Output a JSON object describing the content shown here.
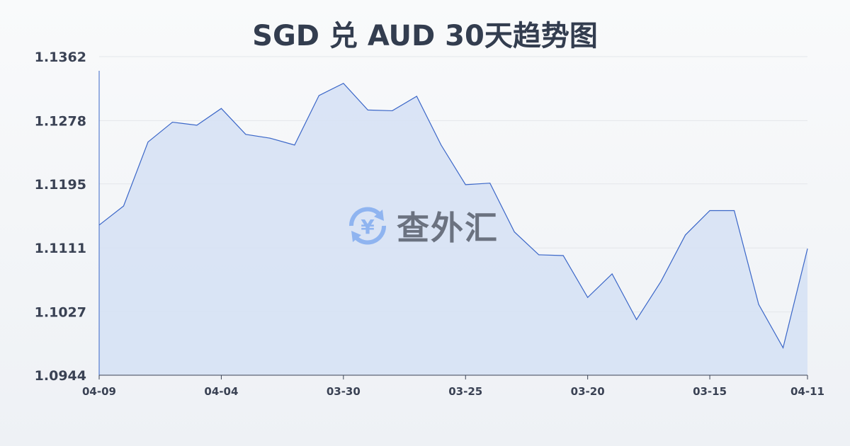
{
  "chart_data": {
    "type": "area",
    "title": "SGD 兑 AUD 30天趋势图",
    "xlabel": "",
    "ylabel": "",
    "ylim": [
      1.0944,
      1.1362
    ],
    "y_ticks": [
      "1.1362",
      "1.1278",
      "1.1195",
      "1.1111",
      "1.1027",
      "1.0944"
    ],
    "x_ticks": [
      {
        "index": 0,
        "label": "04-09"
      },
      {
        "index": 5,
        "label": "04-04"
      },
      {
        "index": 10,
        "label": "03-30"
      },
      {
        "index": 15,
        "label": "03-25"
      },
      {
        "index": 20,
        "label": "03-20"
      },
      {
        "index": 25,
        "label": "03-15"
      },
      {
        "index": 29,
        "label": "04-11"
      }
    ],
    "values": [
      1.1141,
      1.1166,
      1.125,
      1.1276,
      1.1272,
      1.1294,
      1.126,
      1.1255,
      1.1246,
      1.1311,
      1.1327,
      1.1292,
      1.1291,
      1.131,
      1.1246,
      1.1194,
      1.1196,
      1.1132,
      1.1102,
      1.1101,
      1.1046,
      1.1077,
      1.1017,
      1.1067,
      1.1128,
      1.116,
      1.116,
      1.1037,
      1.098,
      1.111
    ],
    "grid": true,
    "line_color": "#3a66c8",
    "fill_color": "#d5e0f5"
  },
  "watermark": {
    "text": "查外汇",
    "icon": "yuan-exchange-icon",
    "color": "#8fb4f0"
  }
}
